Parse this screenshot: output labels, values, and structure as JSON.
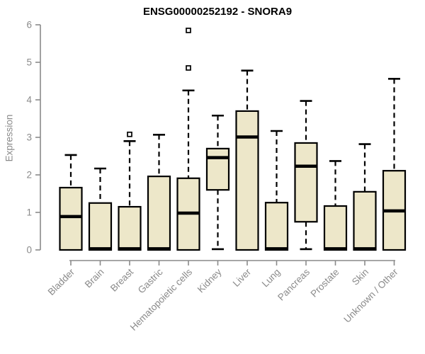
{
  "colors": {
    "axis": "#8A8A8A",
    "box_fill": "#EDE7C9",
    "box_border": "#000000",
    "median": "#000000",
    "background": "#FFFFFF",
    "title_text": "#000000"
  },
  "chart_data": {
    "type": "boxplot",
    "title": "ENSG00000252192 - SNORA9",
    "ylabel": "Expression",
    "xlabel": "",
    "ylim": [
      0,
      6
    ],
    "yticks": [
      0,
      1,
      2,
      3,
      4,
      5,
      6
    ],
    "grid": false,
    "legend": "none",
    "categories": [
      "Bladder",
      "Brain",
      "Breast",
      "Gastric",
      "Hematopoietic cells",
      "Kidney",
      "Liver",
      "Lung",
      "Pancreas",
      "Prostate",
      "Skin",
      "Unknown / Other"
    ],
    "boxes": [
      {
        "category": "Bladder",
        "min": 0,
        "q1": 0,
        "median": 0.89,
        "q3": 1.66,
        "max": 2.53,
        "outliers": []
      },
      {
        "category": "Brain",
        "min": 0,
        "q1": 0,
        "median": 0.03,
        "q3": 1.25,
        "max": 2.17,
        "outliers": []
      },
      {
        "category": "Breast",
        "min": 0,
        "q1": 0,
        "median": 0.03,
        "q3": 1.15,
        "max": 2.9,
        "outliers": [
          3.08
        ]
      },
      {
        "category": "Gastric",
        "min": 0,
        "q1": 0,
        "median": 0.03,
        "q3": 1.96,
        "max": 3.07,
        "outliers": []
      },
      {
        "category": "Hematopoietic cells",
        "min": 0,
        "q1": 0,
        "median": 0.98,
        "q3": 1.91,
        "max": 4.25,
        "outliers": [
          4.85,
          5.85
        ]
      },
      {
        "category": "Kidney",
        "min": 0.02,
        "q1": 1.6,
        "median": 2.46,
        "q3": 2.7,
        "max": 3.58,
        "outliers": []
      },
      {
        "category": "Liver",
        "min": 0,
        "q1": 0,
        "median": 3.01,
        "q3": 3.7,
        "max": 4.78,
        "outliers": []
      },
      {
        "category": "Lung",
        "min": 0,
        "q1": 0,
        "median": 0.03,
        "q3": 1.26,
        "max": 3.17,
        "outliers": []
      },
      {
        "category": "Pancreas",
        "min": 0.02,
        "q1": 0.75,
        "median": 2.23,
        "q3": 2.85,
        "max": 3.97,
        "outliers": []
      },
      {
        "category": "Prostate",
        "min": 0,
        "q1": 0,
        "median": 0.03,
        "q3": 1.17,
        "max": 2.37,
        "outliers": []
      },
      {
        "category": "Skin",
        "min": 0,
        "q1": 0,
        "median": 0.03,
        "q3": 1.55,
        "max": 2.82,
        "outliers": []
      },
      {
        "category": "Unknown / Other",
        "min": 0,
        "q1": 0,
        "median": 1.04,
        "q3": 2.11,
        "max": 4.56,
        "outliers": []
      }
    ]
  }
}
